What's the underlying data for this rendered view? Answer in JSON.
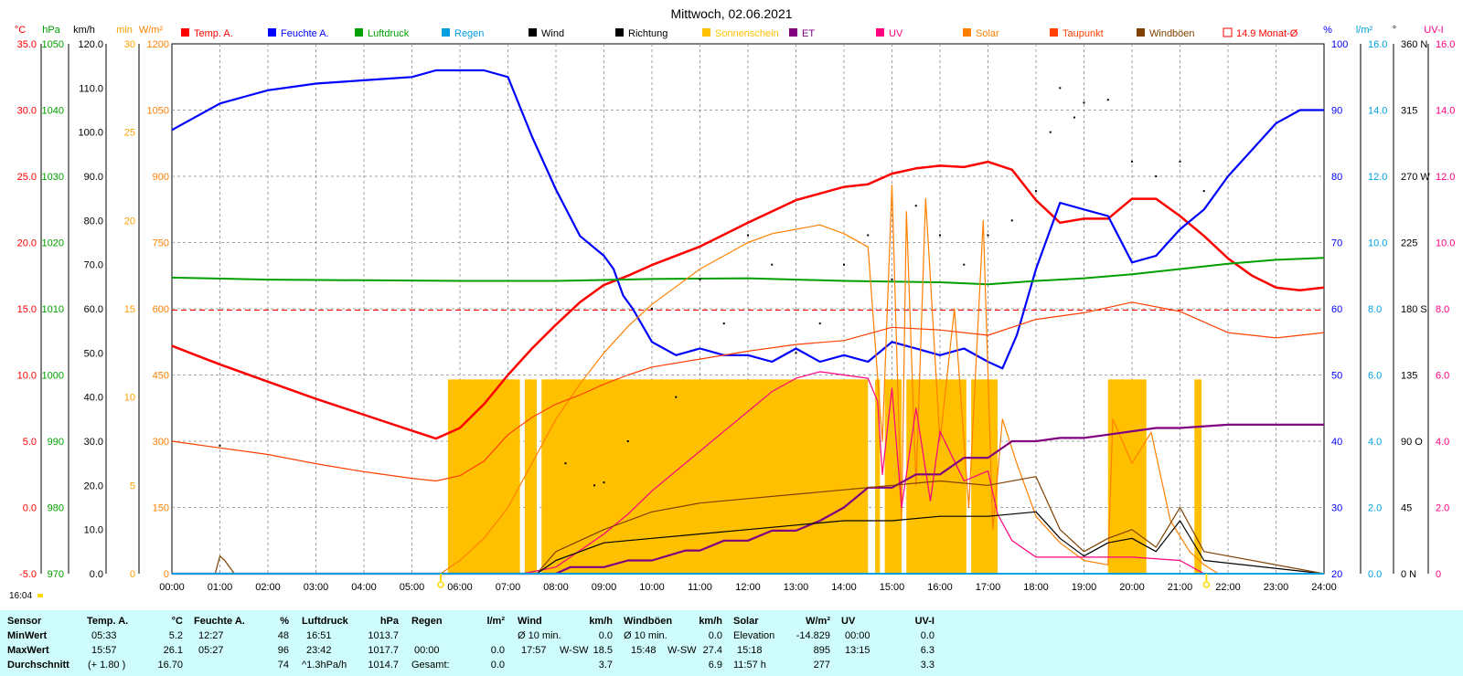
{
  "chart_data": {
    "type": "line",
    "title": "Mittwoch, 02.06.2021",
    "time_label": "16:04",
    "x_range": [
      "00:00",
      "24:00"
    ],
    "x_ticks": [
      "00:00",
      "01:00",
      "02:00",
      "03:00",
      "04:00",
      "05:00",
      "06:00",
      "07:00",
      "08:00",
      "09:00",
      "10:00",
      "11:00",
      "12:00",
      "13:00",
      "14:00",
      "15:00",
      "16:00",
      "17:00",
      "18:00",
      "19:00",
      "20:00",
      "21:00",
      "22:00",
      "23:00",
      "24:00"
    ],
    "grid": true,
    "left_axes": [
      {
        "unit": "°C",
        "color": "#ff0000",
        "min": -5,
        "max": 35,
        "ticks": [
          "35.0",
          "30.0",
          "25.0",
          "20.0",
          "15.0",
          "10.0",
          "5.0",
          "0.0",
          "-5.0"
        ]
      },
      {
        "unit": "hPa",
        "color": "#00a000",
        "min": 970,
        "max": 1050,
        "ticks": [
          "1050",
          "1040",
          "1030",
          "1020",
          "1010",
          "1000",
          "990",
          "980",
          "970"
        ]
      },
      {
        "unit": "km/h",
        "color": "#000000",
        "min": 0,
        "max": 120,
        "ticks": [
          "120.0",
          "110.0",
          "100.0",
          "90.0",
          "80.0",
          "70.0",
          "60.0",
          "50.0",
          "40.0",
          "30.0",
          "20.0",
          "10.0",
          "0.0"
        ]
      },
      {
        "unit": "min",
        "color": "#ffa000",
        "min": 0,
        "max": 30,
        "ticks": [
          "30",
          "25",
          "20",
          "15",
          "10",
          "5",
          "0"
        ]
      },
      {
        "unit": "W/m²",
        "color": "#ff8000",
        "min": 0,
        "max": 1200,
        "ticks": [
          "1200",
          "1050",
          "900",
          "750",
          "600",
          "450",
          "300",
          "150",
          "0"
        ]
      }
    ],
    "right_axes": [
      {
        "unit": "%",
        "color": "#0000ff",
        "min": 20,
        "max": 100,
        "ticks": [
          "100",
          "90",
          "80",
          "70",
          "60",
          "50",
          "40",
          "30",
          "20"
        ]
      },
      {
        "unit": "l/m²",
        "color": "#00a0e0",
        "min": 0,
        "max": 16,
        "ticks": [
          "16.0",
          "14.0",
          "12.0",
          "10.0",
          "8.0",
          "6.0",
          "4.0",
          "2.0",
          "0.0"
        ]
      },
      {
        "unit": "°",
        "color": "#000000",
        "min": 0,
        "max": 360,
        "ticks": [
          "360 N",
          "315",
          "270 W",
          "225",
          "180 S",
          "135",
          "90 O",
          "45",
          "0 N"
        ]
      },
      {
        "unit": "UV-I",
        "color": "#ff0080",
        "min": 0,
        "max": 16,
        "ticks": [
          "16.0",
          "14.0",
          "12.0",
          "10.0",
          "8.0",
          "6.0",
          "4.0",
          "2.0",
          "0"
        ]
      }
    ],
    "legend": [
      {
        "name": "Temp. A.",
        "color": "#ff0000"
      },
      {
        "name": "Feuchte A.",
        "color": "#0000ff"
      },
      {
        "name": "Luftdruck",
        "color": "#00a000"
      },
      {
        "name": "Regen",
        "color": "#00a0e0"
      },
      {
        "name": "Wind",
        "color": "#000000"
      },
      {
        "name": "Richtung",
        "color": "#000000"
      },
      {
        "name": "Sonnenschein",
        "color": "#ffc000"
      },
      {
        "name": "ET",
        "color": "#800080"
      },
      {
        "name": "UV",
        "color": "#ff0080"
      },
      {
        "name": "Solar",
        "color": "#ff8000"
      },
      {
        "name": "Taupunkt",
        "color": "#ff4000"
      },
      {
        "name": "Windböen",
        "color": "#804000"
      },
      {
        "name": "14.9 Monat-Ø",
        "color": "#ff0000",
        "style": "dashed"
      }
    ],
    "monthly_avg_temp": 14.9,
    "series": [
      {
        "name": "Temp. A.",
        "axis": "°C",
        "x": [
          0,
          0.5,
          1,
          2,
          3,
          4,
          5,
          5.5,
          6,
          6.5,
          7,
          7.5,
          8,
          8.5,
          9,
          9.5,
          10,
          11,
          12,
          13,
          14,
          14.5,
          15,
          15.5,
          16,
          16.5,
          17,
          17.5,
          18,
          18.5,
          19,
          19.5,
          20,
          20.5,
          21,
          21.5,
          22,
          22.5,
          23,
          23.5,
          24
        ],
        "y": [
          12.2,
          11.5,
          10.8,
          9.5,
          8.2,
          7.0,
          5.8,
          5.2,
          6.0,
          7.8,
          10.0,
          12.0,
          13.8,
          15.5,
          16.8,
          17.5,
          18.3,
          19.7,
          21.5,
          23.2,
          24.2,
          24.4,
          25.2,
          25.6,
          25.8,
          25.7,
          26.1,
          25.5,
          23.2,
          21.5,
          21.8,
          21.8,
          23.3,
          23.3,
          22.0,
          20.5,
          18.8,
          17.5,
          16.6,
          16.4,
          16.6
        ]
      },
      {
        "name": "Feuchte A.",
        "axis": "%",
        "x": [
          0,
          0.5,
          1,
          1.5,
          2,
          3,
          4,
          5,
          5.5,
          6,
          6.5,
          7,
          7.5,
          8,
          8.5,
          9,
          9.2,
          9.4,
          9.6,
          10,
          10.5,
          11,
          11.5,
          12,
          12.5,
          13,
          13.5,
          14,
          14.5,
          15,
          15.5,
          16,
          16.5,
          17,
          17.3,
          17.6,
          18,
          18.5,
          19,
          19.5,
          20,
          20.5,
          21,
          21.5,
          22,
          22.5,
          23,
          23.5,
          24
        ],
        "y": [
          87,
          89,
          91,
          92,
          93,
          94,
          94.5,
          95,
          96,
          96,
          96,
          95,
          86,
          78,
          71,
          68,
          66,
          62,
          60,
          55,
          53,
          54,
          53,
          53,
          52,
          54,
          52,
          53,
          52,
          55,
          54,
          53,
          54,
          52,
          51,
          56,
          66,
          76,
          75,
          74,
          67,
          68,
          72,
          75,
          80,
          84,
          88,
          90,
          90
        ]
      },
      {
        "name": "Luftdruck",
        "axis": "hPa",
        "x": [
          0,
          2,
          4,
          6,
          8,
          10,
          12,
          14,
          16,
          17,
          18,
          19,
          20,
          21,
          22,
          23,
          24
        ],
        "y": [
          1014.7,
          1014.4,
          1014.3,
          1014.2,
          1014.2,
          1014.5,
          1014.6,
          1014.2,
          1014.0,
          1013.7,
          1014.2,
          1014.6,
          1015.2,
          1016.0,
          1016.8,
          1017.4,
          1017.7
        ]
      },
      {
        "name": "Solar",
        "axis": "W/m²",
        "x": [
          0,
          5.6,
          6,
          6.5,
          7,
          7.5,
          8,
          8.5,
          9,
          9.5,
          10,
          10.5,
          11,
          11.5,
          12,
          12.5,
          13,
          13.5,
          14,
          14.5,
          14.8,
          15,
          15.2,
          15.3,
          15.5,
          15.7,
          16,
          16.3,
          16.6,
          16.9,
          17.1,
          17.3,
          17.6,
          18,
          18.5,
          19,
          19.5,
          19.6,
          20,
          20.4,
          20.8,
          21.2,
          21.5,
          21.8,
          24
        ],
        "y": [
          0,
          0,
          30,
          80,
          150,
          250,
          350,
          430,
          500,
          560,
          610,
          650,
          690,
          720,
          750,
          770,
          780,
          790,
          770,
          740,
          300,
          880,
          120,
          820,
          200,
          850,
          300,
          600,
          150,
          800,
          100,
          350,
          250,
          130,
          70,
          30,
          20,
          350,
          250,
          320,
          120,
          50,
          20,
          0,
          0
        ]
      },
      {
        "name": "Taupunkt",
        "axis": "°C",
        "x": [
          0,
          1,
          2,
          3,
          4,
          5,
          5.5,
          6,
          6.5,
          7,
          7.5,
          8,
          8.5,
          9,
          9.5,
          10,
          11,
          12,
          13,
          14,
          15,
          16,
          17,
          18,
          19,
          20,
          21,
          22,
          23,
          24
        ],
        "y": [
          5.0,
          4.5,
          4.0,
          3.3,
          2.7,
          2.2,
          2.0,
          2.4,
          3.5,
          5.5,
          6.8,
          7.8,
          8.5,
          9.3,
          10.0,
          10.6,
          11.2,
          11.8,
          12.3,
          12.6,
          13.6,
          13.4,
          13.0,
          14.2,
          14.7,
          15.5,
          14.8,
          13.2,
          12.8,
          13.2
        ]
      },
      {
        "name": "UV",
        "axis": "UV-I",
        "x": [
          0,
          7.3,
          8,
          8.5,
          9,
          9.5,
          10,
          10.5,
          11,
          11.5,
          12,
          12.5,
          13,
          13.5,
          14,
          14.5,
          14.7,
          14.8,
          15,
          15.2,
          15.5,
          15.8,
          16,
          16.5,
          17,
          17.2,
          17.5,
          18,
          18.5,
          19,
          20,
          21,
          21.5,
          24
        ],
        "y": [
          0,
          0,
          0.2,
          0.7,
          1.2,
          1.8,
          2.5,
          3.1,
          3.7,
          4.3,
          4.9,
          5.5,
          5.9,
          6.1,
          6.0,
          5.9,
          5.2,
          3.0,
          5.6,
          2.0,
          5.0,
          2.2,
          4.3,
          2.8,
          3.1,
          1.8,
          1.0,
          0.5,
          0.5,
          0.5,
          0.5,
          0.4,
          0.0,
          0
        ]
      },
      {
        "name": "ET",
        "axis": "l/m²",
        "x": [
          0,
          8,
          8.3,
          9,
          9.5,
          10,
          10.7,
          11,
          11.5,
          12,
          12.5,
          13,
          13.5,
          14,
          14.5,
          15,
          15.5,
          16,
          16.5,
          17,
          17.5,
          18,
          18.5,
          19,
          19.5,
          20,
          20.5,
          21,
          22,
          23,
          24
        ],
        "y": [
          0,
          0,
          0.2,
          0.2,
          0.4,
          0.4,
          0.7,
          0.7,
          1.0,
          1.0,
          1.3,
          1.3,
          1.6,
          2.0,
          2.6,
          2.6,
          3.0,
          3.0,
          3.5,
          3.5,
          4.0,
          4.0,
          4.1,
          4.1,
          4.2,
          4.3,
          4.4,
          4.4,
          4.5,
          4.5,
          4.5
        ]
      },
      {
        "name": "Wind",
        "axis": "km/h",
        "x": [
          0,
          1.0,
          1.3,
          7.6,
          8,
          9,
          10,
          11,
          12,
          13,
          14,
          15,
          16,
          17,
          18,
          18.5,
          19,
          19.5,
          20,
          20.5,
          21,
          21.5,
          24
        ],
        "y": [
          0,
          0,
          0,
          0,
          3,
          7,
          8,
          9,
          10,
          11,
          12,
          12,
          13,
          13,
          14,
          8,
          4,
          7,
          8,
          5,
          12,
          3,
          0
        ]
      },
      {
        "name": "Windböen",
        "axis": "km/h",
        "x": [
          0,
          0.9,
          1.0,
          1.1,
          1.3,
          7.6,
          8,
          9,
          10,
          11,
          12,
          13,
          14,
          15,
          16,
          17,
          18,
          18.5,
          19,
          19.5,
          20,
          20.5,
          21,
          21.5,
          24
        ],
        "y": [
          0,
          0,
          4,
          3,
          0,
          0,
          5,
          10,
          14,
          16,
          17,
          18,
          19,
          20,
          21,
          20,
          22,
          10,
          5,
          8,
          10,
          6,
          15,
          5,
          0
        ]
      },
      {
        "name": "Regen",
        "axis": "l/m²",
        "x": [
          0,
          24
        ],
        "y": [
          0,
          0
        ]
      }
    ],
    "sunshine_blocks": [
      {
        "from": 5.75,
        "to": 7.25
      },
      {
        "from": 7.35,
        "to": 7.6
      },
      {
        "from": 7.7,
        "to": 14.5
      },
      {
        "from": 14.65,
        "to": 14.75
      },
      {
        "from": 14.85,
        "to": 15.2
      },
      {
        "from": 15.3,
        "to": 16.55
      },
      {
        "from": 16.65,
        "to": 17.2
      },
      {
        "from": 19.5,
        "to": 20.3
      },
      {
        "from": 21.3,
        "to": 21.45
      }
    ],
    "sunshine_level": 11,
    "direction_points": [
      {
        "x": 1.0,
        "y": 87
      },
      {
        "x": 8.2,
        "y": 75
      },
      {
        "x": 8.8,
        "y": 60
      },
      {
        "x": 9.0,
        "y": 62
      },
      {
        "x": 9.5,
        "y": 90
      },
      {
        "x": 10.0,
        "y": 180
      },
      {
        "x": 10.5,
        "y": 120
      },
      {
        "x": 11.0,
        "y": 200
      },
      {
        "x": 11.5,
        "y": 170
      },
      {
        "x": 12.0,
        "y": 230
      },
      {
        "x": 12.5,
        "y": 210
      },
      {
        "x": 13.0,
        "y": 150
      },
      {
        "x": 13.5,
        "y": 170
      },
      {
        "x": 14.0,
        "y": 210
      },
      {
        "x": 14.5,
        "y": 230
      },
      {
        "x": 15.0,
        "y": 200
      },
      {
        "x": 15.5,
        "y": 250
      },
      {
        "x": 16.0,
        "y": 230
      },
      {
        "x": 16.5,
        "y": 210
      },
      {
        "x": 17.0,
        "y": 230
      },
      {
        "x": 17.5,
        "y": 240
      },
      {
        "x": 18.0,
        "y": 260
      },
      {
        "x": 18.3,
        "y": 300
      },
      {
        "x": 18.5,
        "y": 330
      },
      {
        "x": 18.8,
        "y": 310
      },
      {
        "x": 19.0,
        "y": 320
      },
      {
        "x": 19.5,
        "y": 322
      },
      {
        "x": 20.0,
        "y": 280
      },
      {
        "x": 20.5,
        "y": 270
      },
      {
        "x": 21.0,
        "y": 280
      },
      {
        "x": 21.5,
        "y": 260
      }
    ],
    "sunrise_time": 5.6,
    "sunset_time": 21.55
  },
  "stats": {
    "rows": [
      "Sensor",
      "MinWert",
      "MaxWert",
      "Durchschnitt"
    ],
    "temp": {
      "title": "Temp. A.",
      "unit": "°C",
      "min_time": "05:33",
      "min": "5.2",
      "max_time": "15:57",
      "max": "26.1",
      "avg_note": "(+ 1.80 )",
      "avg": "16.70"
    },
    "feuchte": {
      "title": "Feuchte A.",
      "unit": "%",
      "min_time": "12:27",
      "min": "48",
      "max_time": "05:27",
      "max": "96",
      "avg": "74"
    },
    "luftdruck": {
      "title": "Luftdruck",
      "unit": "hPa",
      "min_time": "16:51",
      "min": "1013.7",
      "max_time": "23:42",
      "max": "1017.7",
      "avg_note": "^1.3hPa/h",
      "avg": "1014.7"
    },
    "regen": {
      "title": "Regen",
      "unit": "l/m²",
      "max_time": "00:00",
      "max": "0.0",
      "avg_label": "Gesamt:",
      "avg": "0.0"
    },
    "wind": {
      "title": "Wind",
      "unit": "km/h",
      "min_label": "Ø 10 min.",
      "min": "0.0",
      "max_time": "17:57",
      "max_dir": "W-SW",
      "max": "18.5",
      "avg": "3.7"
    },
    "boeen": {
      "title": "Windböen",
      "unit": "km/h",
      "min_label": "Ø 10 min.",
      "min": "0.0",
      "max_time": "15:48",
      "max_dir": "W-SW",
      "max": "27.4",
      "avg": "6.9"
    },
    "solar": {
      "title": "Solar",
      "unit": "W/m²",
      "min_label": "Elevation",
      "min": "-14.829",
      "max_time": "15:18",
      "max": "895",
      "avg_note": "11:57 h",
      "avg": "277"
    },
    "uv": {
      "title": "UV",
      "unit": "UV-I",
      "min_time": "00:00",
      "min": "0.0",
      "max_time": "13:15",
      "max": "6.3",
      "avg": "3.3"
    }
  }
}
